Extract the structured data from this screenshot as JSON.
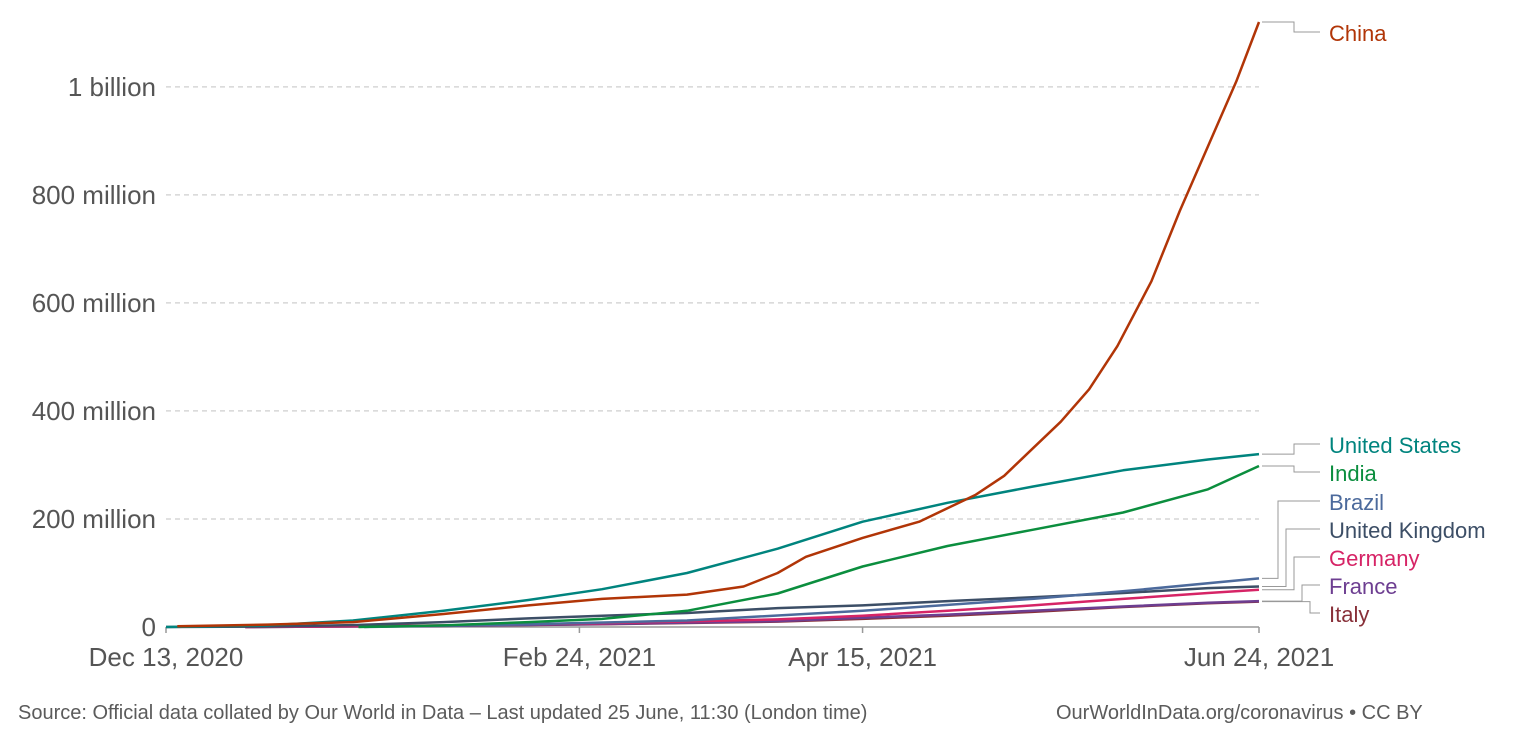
{
  "chart_data": {
    "type": "line",
    "x_ticks": [
      "Dec 13, 2020",
      "Feb 24, 2021",
      "Apr 15, 2021",
      "Jun 24, 2021"
    ],
    "y_ticks": [
      {
        "value": 0,
        "label": "0"
      },
      {
        "value": 200000000,
        "label": "200 million"
      },
      {
        "value": 400000000,
        "label": "400 million"
      },
      {
        "value": 600000000,
        "label": "600 million"
      },
      {
        "value": 800000000,
        "label": "800 million"
      },
      {
        "value": 1000000000,
        "label": "1 billion"
      }
    ],
    "xlim": [
      "2020-12-13",
      "2021-06-24"
    ],
    "ylim": [
      0,
      1120000000
    ],
    "grid": "horizontal dashed",
    "series": [
      {
        "name": "China",
        "color": "#b13507",
        "points": [
          [
            "2020-12-15",
            1500000
          ],
          [
            "2020-12-31",
            4500000
          ],
          [
            "2021-01-15",
            9000000
          ],
          [
            "2021-01-31",
            24000000
          ],
          [
            "2021-02-15",
            40000000
          ],
          [
            "2021-02-28",
            52000000
          ],
          [
            "2021-03-15",
            60000000
          ],
          [
            "2021-03-25",
            75000000
          ],
          [
            "2021-03-31",
            100000000
          ],
          [
            "2021-04-05",
            130000000
          ],
          [
            "2021-04-15",
            165000000
          ],
          [
            "2021-04-25",
            195000000
          ],
          [
            "2021-05-05",
            245000000
          ],
          [
            "2021-05-10",
            280000000
          ],
          [
            "2021-05-15",
            330000000
          ],
          [
            "2021-05-20",
            380000000
          ],
          [
            "2021-05-25",
            440000000
          ],
          [
            "2021-05-30",
            520000000
          ],
          [
            "2021-06-05",
            640000000
          ],
          [
            "2021-06-10",
            770000000
          ],
          [
            "2021-06-15",
            890000000
          ],
          [
            "2021-06-20",
            1010000000
          ],
          [
            "2021-06-24",
            1120000000
          ]
        ]
      },
      {
        "name": "United States",
        "color": "#00847e",
        "points": [
          [
            "2020-12-13",
            0
          ],
          [
            "2020-12-31",
            3000000
          ],
          [
            "2021-01-15",
            12000000
          ],
          [
            "2021-01-31",
            30000000
          ],
          [
            "2021-02-15",
            50000000
          ],
          [
            "2021-02-28",
            70000000
          ],
          [
            "2021-03-15",
            100000000
          ],
          [
            "2021-03-31",
            145000000
          ],
          [
            "2021-04-15",
            195000000
          ],
          [
            "2021-04-30",
            230000000
          ],
          [
            "2021-05-15",
            260000000
          ],
          [
            "2021-05-31",
            290000000
          ],
          [
            "2021-06-15",
            310000000
          ],
          [
            "2021-06-24",
            320000000
          ]
        ]
      },
      {
        "name": "India",
        "color": "#0b8e3e",
        "points": [
          [
            "2021-01-16",
            0
          ],
          [
            "2021-01-31",
            3000000
          ],
          [
            "2021-02-15",
            9000000
          ],
          [
            "2021-02-28",
            15000000
          ],
          [
            "2021-03-15",
            30000000
          ],
          [
            "2021-03-31",
            62000000
          ],
          [
            "2021-04-15",
            112000000
          ],
          [
            "2021-04-30",
            150000000
          ],
          [
            "2021-05-15",
            180000000
          ],
          [
            "2021-05-31",
            212000000
          ],
          [
            "2021-06-15",
            255000000
          ],
          [
            "2021-06-24",
            298000000
          ]
        ]
      },
      {
        "name": "Brazil",
        "color": "#4c6a9c",
        "points": [
          [
            "2021-01-17",
            0
          ],
          [
            "2021-02-15",
            5000000
          ],
          [
            "2021-03-15",
            12000000
          ],
          [
            "2021-04-15",
            30000000
          ],
          [
            "2021-05-15",
            52000000
          ],
          [
            "2021-06-01",
            67000000
          ],
          [
            "2021-06-24",
            90000000
          ]
        ]
      },
      {
        "name": "United Kingdom",
        "color": "#3c4e66",
        "points": [
          [
            "2020-12-13",
            0
          ],
          [
            "2020-12-31",
            1000000
          ],
          [
            "2021-01-15",
            3500000
          ],
          [
            "2021-01-31",
            9000000
          ],
          [
            "2021-02-15",
            16000000
          ],
          [
            "2021-02-28",
            21000000
          ],
          [
            "2021-03-15",
            26000000
          ],
          [
            "2021-03-31",
            35000000
          ],
          [
            "2021-04-15",
            40000000
          ],
          [
            "2021-04-30",
            48000000
          ],
          [
            "2021-05-15",
            55000000
          ],
          [
            "2021-05-31",
            63000000
          ],
          [
            "2021-06-15",
            72000000
          ],
          [
            "2021-06-24",
            75000000
          ]
        ]
      },
      {
        "name": "Germany",
        "color": "#d62466",
        "points": [
          [
            "2020-12-27",
            0
          ],
          [
            "2021-01-31",
            3000000
          ],
          [
            "2021-02-28",
            7000000
          ],
          [
            "2021-03-31",
            14000000
          ],
          [
            "2021-04-15",
            21000000
          ],
          [
            "2021-04-30",
            30000000
          ],
          [
            "2021-05-15",
            40000000
          ],
          [
            "2021-05-31",
            52000000
          ],
          [
            "2021-06-15",
            63000000
          ],
          [
            "2021-06-24",
            69000000
          ]
        ]
      },
      {
        "name": "France",
        "color": "#6d3e91",
        "points": [
          [
            "2020-12-27",
            0
          ],
          [
            "2021-01-31",
            2000000
          ],
          [
            "2021-02-28",
            5500000
          ],
          [
            "2021-03-31",
            11000000
          ],
          [
            "2021-04-15",
            17000000
          ],
          [
            "2021-04-30",
            23000000
          ],
          [
            "2021-05-15",
            30000000
          ],
          [
            "2021-05-31",
            38000000
          ],
          [
            "2021-06-15",
            45000000
          ],
          [
            "2021-06-24",
            48000000
          ]
        ]
      },
      {
        "name": "Italy",
        "color": "#883039",
        "points": [
          [
            "2020-12-27",
            0
          ],
          [
            "2021-01-31",
            2000000
          ],
          [
            "2021-02-28",
            5000000
          ],
          [
            "2021-03-31",
            10000000
          ],
          [
            "2021-04-15",
            15000000
          ],
          [
            "2021-04-30",
            21000000
          ],
          [
            "2021-05-15",
            28000000
          ],
          [
            "2021-05-31",
            37000000
          ],
          [
            "2021-06-15",
            44000000
          ],
          [
            "2021-06-24",
            47000000
          ]
        ]
      }
    ]
  },
  "footer": {
    "source": "Source: Official data collated by Our World in Data – Last updated 25 June, 11:30 (London time)",
    "credit": "OurWorldInData.org/coronavirus • CC BY"
  }
}
